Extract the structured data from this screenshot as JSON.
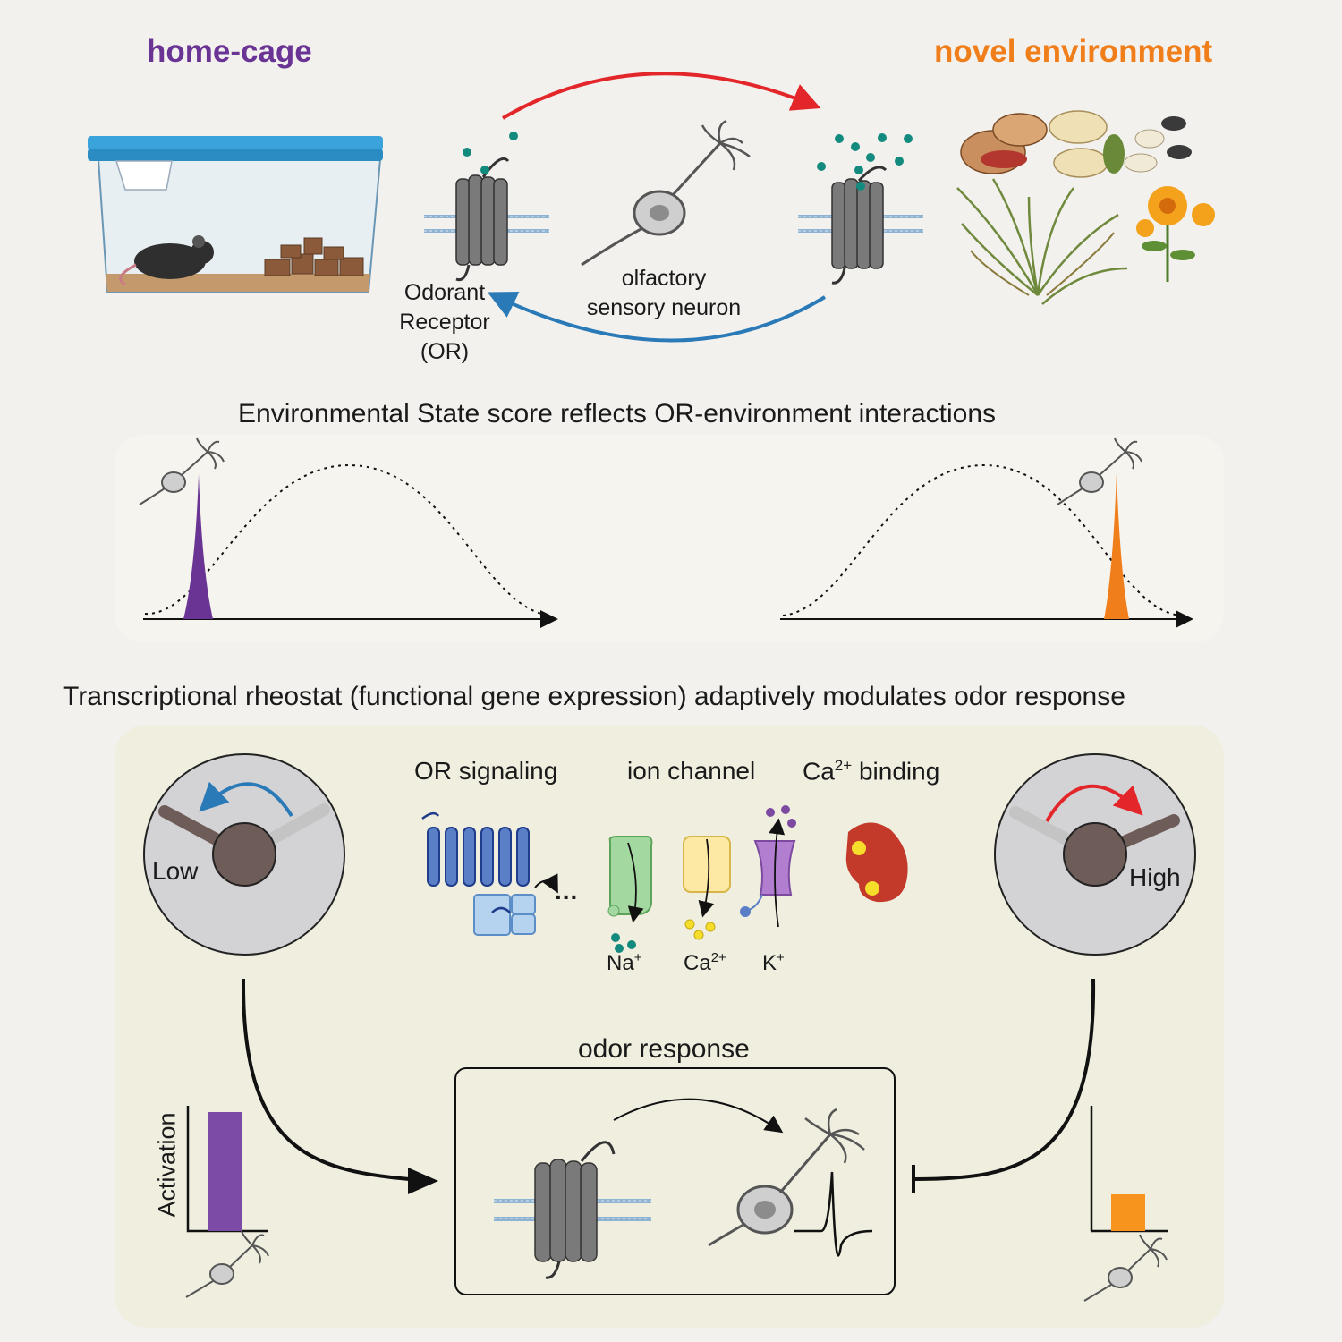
{
  "header": {
    "home_cage": "home-cage",
    "novel_environment": "novel environment"
  },
  "cycle": {
    "receptor_line1": "Odorant",
    "receptor_line2": "Receptor",
    "receptor_line3": "(OR)",
    "neuron_line1": "olfactory",
    "neuron_line2": "sensory neuron"
  },
  "state_section": {
    "title": "Environmental State score reflects OR-environment interactions"
  },
  "rheostat_section": {
    "title": "Transcriptional rheostat (functional gene expression) adaptively modulates odor response",
    "dial_low": "Low",
    "dial_high": "High",
    "cat_or_signaling": "OR signaling",
    "cat_ion_channel": "ion channel",
    "cat_ca_binding_pre": "Ca",
    "cat_ca_binding_sup": "2+",
    "cat_ca_binding_post": " binding",
    "ion_na": "Na",
    "ion_na_sup": "+",
    "ion_ca": "Ca",
    "ion_ca_sup": "2+",
    "ion_k": "K",
    "ion_k_sup": "+",
    "ellipsis": "...",
    "odor_response": "odor response",
    "activation_label": "Activation"
  },
  "activation_levels": {
    "low_condition": 0.9,
    "high_condition": 0.28
  },
  "colors": {
    "home": "#6a3494",
    "novel": "#f07f1b",
    "red_arrow": "#e3262a",
    "blue_arrow": "#2a7ab8",
    "teal_odor": "#138a7e",
    "receptor_gray": "#777777",
    "dial_hub": "#6e5c58"
  }
}
